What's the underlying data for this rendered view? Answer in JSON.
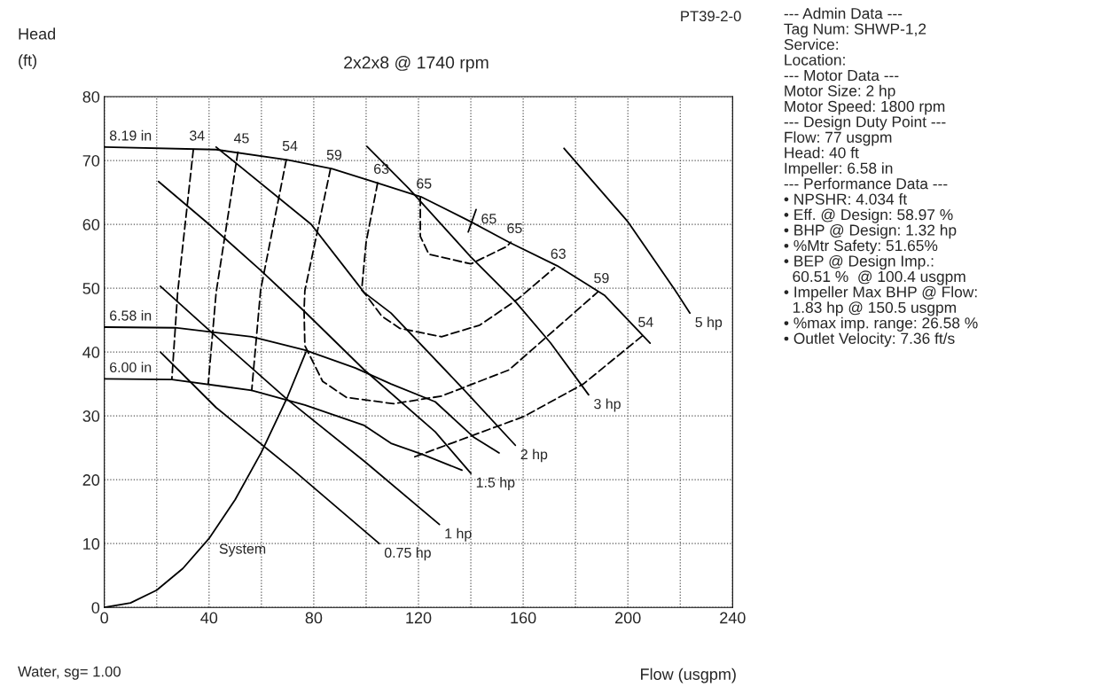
{
  "chart_data": [
    {
      "type": "line",
      "subtitle": "2x2x8 @ 1740 rpm",
      "xlabel": "Flow (usgpm)",
      "ylabel": "Head\n(ft)",
      "xlim": [
        0,
        240
      ],
      "ylim": [
        0,
        80
      ],
      "xticks": [
        0,
        {
          "value": 20,
          "label": null
        },
        40,
        {
          "value": 60,
          "label": null
        },
        80,
        {
          "value": 100,
          "label": null
        },
        120,
        {
          "value": 140,
          "label": null
        },
        160,
        {
          "value": 180,
          "label": null
        },
        200,
        {
          "value": 220,
          "label": null
        },
        240
      ],
      "yticks": [
        0,
        10,
        20,
        30,
        40,
        50,
        60,
        70,
        80
      ],
      "grid": true,
      "legend": false,
      "series": [
        {
          "name": "8.19 in",
          "color": "#000000",
          "x": [
            0,
            42.7,
            70,
            87,
            104,
            121,
            140,
            154.6,
            173,
            184,
            191,
            208.5
          ],
          "values": [
            72.1,
            71.7,
            70.1,
            68.7,
            66.5,
            64.3,
            60.4,
            57.2,
            53.5,
            50.7,
            48.9,
            41.4
          ]
        },
        {
          "name": "6.58 in",
          "color": "#000000",
          "x": [
            0,
            27.1,
            56.3,
            76.6,
            95.9,
            109.5,
            126.4,
            141,
            150.8
          ],
          "values": [
            43.9,
            43.8,
            42.4,
            40.3,
            37.5,
            35,
            32.2,
            26.7,
            24.2
          ]
        },
        {
          "name": "6.00 in",
          "color": "#000000",
          "x": [
            0,
            25.8,
            56.3,
            76.6,
            99.3,
            109.5,
            122,
            136.6
          ],
          "values": [
            35.8,
            35.7,
            34,
            31.7,
            28.5,
            25.7,
            23.9,
            21.5
          ]
        },
        {
          "name": "2 hp",
          "color": "#000000",
          "x": [
            42.7,
            79,
            99.3,
            109.5,
            137.6,
            157
          ],
          "values": [
            72.1,
            60,
            49.3,
            46.1,
            34,
            25.4
          ]
        },
        {
          "name": "3 hp",
          "color": "#000000",
          "x": [
            100.3,
            116.3,
            140,
            157,
            170.5,
            185
          ],
          "values": [
            72.2,
            65.6,
            54.9,
            47.9,
            41.4,
            33.3
          ]
        },
        {
          "name": "5 hp",
          "color": "#000000",
          "x": [
            175.6,
            200,
            218,
            223.7
          ],
          "values": [
            71.9,
            60.4,
            49.7,
            46.1
          ]
        },
        {
          "name": "1.5 hp",
          "color": "#000000",
          "x": [
            20.7,
            40,
            59.7,
            76.6,
            99.3,
            126.4,
            140
          ],
          "values": [
            66.7,
            60,
            52.8,
            46.3,
            37.2,
            27.5,
            21
          ]
        },
        {
          "name": "1 hp",
          "color": "#000000",
          "x": [
            21.4,
            41.7,
            69.8,
            99.3,
            128
          ],
          "values": [
            50.3,
            42.8,
            32.6,
            22.9,
            13
          ]
        },
        {
          "name": "0.75 hp",
          "color": "#000000",
          "x": [
            21.4,
            42.7,
            72.2,
            105
          ],
          "values": [
            40,
            31.3,
            21.5,
            10
          ]
        },
        {
          "name": "System",
          "color": "#000000",
          "x": [
            0,
            10,
            20,
            30,
            40,
            50,
            60,
            70,
            77
          ],
          "values": [
            0,
            0.7,
            2.7,
            6.1,
            10.8,
            16.9,
            24.3,
            33,
            40
          ]
        },
        {
          "name": "65",
          "color": "#000000",
          "x": [
            139,
            142
          ],
          "values": [
            58.8,
            62.3
          ]
        },
        {
          "name": "34",
          "color": "#000000",
          "line_style": "dashed",
          "x": [
            34,
            28,
            25.8
          ],
          "values": [
            71.7,
            49.3,
            35.8
          ]
        },
        {
          "name": "45",
          "color": "#000000",
          "line_style": "dashed",
          "x": [
            51,
            42.7,
            39.7
          ],
          "values": [
            71.3,
            49.3,
            35.1
          ]
        },
        {
          "name": "54",
          "color": "#000000",
          "line_style": "dashed",
          "x": [
            69.5,
            59.7,
            56.3
          ],
          "values": [
            70.1,
            49.7,
            34
          ]
        },
        {
          "name": "54",
          "color": "#000000",
          "line_style": "dashed",
          "x": [
            118.6,
            160.3,
            183,
            205.4
          ],
          "values": [
            23.6,
            29.9,
            35,
            42.5
          ]
        },
        {
          "name": "59",
          "color": "#000000",
          "line_style": "dashed",
          "x": [
            86.4,
            76.6,
            76.3,
            76.6,
            83.4,
            92.5,
            110.5,
            128.8,
            154.6,
            188.5
          ],
          "values": [
            68.7,
            49.6,
            46.5,
            41,
            35.4,
            32.9,
            31.9,
            33.1,
            37.2,
            49.4
          ]
        },
        {
          "name": "63",
          "color": "#000000",
          "line_style": "dashed",
          "x": [
            104.4,
            100,
            98.3,
            100,
            106,
            112.9,
            128.8,
            143.4,
            158,
            172
          ],
          "values": [
            66.5,
            57.2,
            49.7,
            48.9,
            45.6,
            43.7,
            42.4,
            44.2,
            48.3,
            53.2
          ]
        },
        {
          "name": "65",
          "color": "#000000",
          "line_style": "dashed",
          "x": [
            120.7,
            120.7,
            124,
            140,
            153.6,
            155.3
          ],
          "values": [
            64.2,
            58.1,
            55.3,
            53.8,
            56.5,
            57.2
          ]
        }
      ],
      "annotations": [
        "PT39-2-0",
        "Water, sg= 1.00"
      ]
    },
    {
      "type": "other",
      "annotations": [
        "--- Admin Data ---",
        "Tag Num: SHWP-1,2",
        "Service:",
        "Location:",
        "--- Motor Data ---",
        "Motor Size: 2 hp",
        "Motor Speed: 1800 rpm",
        "--- Design Duty Point ---",
        "Flow: 77 usgpm",
        "Head: 40 ft",
        "Impeller: 6.58 in",
        "--- Performance Data ---",
        "• NPSHR: 4.034 ft",
        "• Eff. @ Design: 58.97 %",
        "• BHP @ Design: 1.32 hp",
        "• %Mtr Safety: 51.65%",
        "• BEP @ Design Imp.:",
        "  60.51 %  @ 100.4 usgpm",
        "• Impeller Max BHP @ Flow:",
        "  1.83 hp @ 150.5 usgpm",
        "• %max imp. range: 26.58 %",
        "• Outlet Velocity: 7.36 ft/s"
      ]
    }
  ]
}
